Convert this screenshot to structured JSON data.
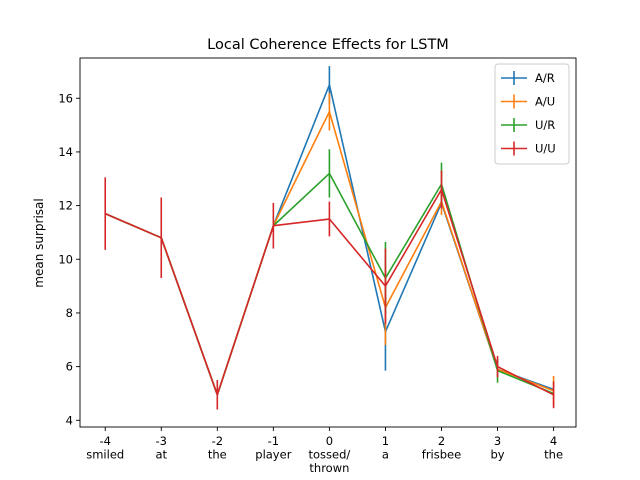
{
  "chart_data": {
    "type": "line",
    "title": "Local Coherence Effects for LSTM",
    "xlabel": "",
    "ylabel": "mean surprisal",
    "x": [
      -4,
      -3,
      -2,
      -1,
      0,
      1,
      2,
      3,
      4
    ],
    "x_tick_labels": [
      [
        "-4",
        "smiled"
      ],
      [
        "-3",
        "at"
      ],
      [
        "-2",
        "the"
      ],
      [
        "-1",
        "player"
      ],
      [
        "0",
        "tossed/",
        "thrown"
      ],
      [
        "1",
        "a"
      ],
      [
        "2",
        "frisbee"
      ],
      [
        "3",
        "by"
      ],
      [
        "4",
        "the"
      ]
    ],
    "y_ticks": [
      4,
      6,
      8,
      10,
      12,
      14,
      16
    ],
    "xlim": [
      -4.45,
      4.4
    ],
    "ylim": [
      3.75,
      17.5
    ],
    "grid": false,
    "legend_position": "top-right",
    "series": [
      {
        "name": "A/R",
        "color": "#1f77b4",
        "values": [
          11.7,
          10.8,
          4.95,
          11.25,
          16.5,
          7.3,
          12.1,
          5.9,
          5.15
        ],
        "errors": [
          0,
          0,
          0,
          0,
          0.7,
          1.45,
          0,
          0,
          0
        ]
      },
      {
        "name": "A/U",
        "color": "#ff7f0e",
        "values": [
          11.7,
          10.8,
          4.95,
          11.25,
          15.5,
          8.2,
          12.15,
          5.9,
          5.1
        ],
        "errors": [
          0,
          0,
          0,
          0,
          0.7,
          1.4,
          0.5,
          0,
          0.55
        ]
      },
      {
        "name": "U/R",
        "color": "#2ca02c",
        "values": [
          11.7,
          10.8,
          4.95,
          11.25,
          13.2,
          9.3,
          12.8,
          5.85,
          5.0
        ],
        "errors": [
          0,
          0,
          0,
          0,
          0.9,
          1.35,
          0.8,
          0.45,
          0
        ]
      },
      {
        "name": "U/U",
        "color": "#d62728",
        "values": [
          11.7,
          10.8,
          4.95,
          11.25,
          11.5,
          9.0,
          12.6,
          6.0,
          4.95
        ],
        "errors": [
          1.35,
          1.5,
          0.55,
          0.85,
          0.65,
          1.4,
          0.7,
          0.4,
          0.5
        ]
      }
    ]
  }
}
